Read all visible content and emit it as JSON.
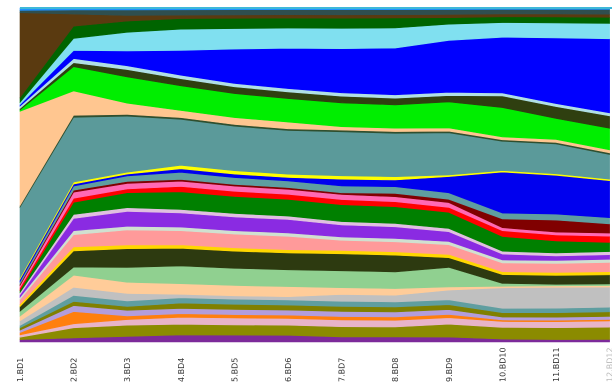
{
  "chart_data": {
    "type": "area",
    "stacking": "percent",
    "grid": false,
    "legend": "none",
    "categories": [
      "1.BD1",
      "2.BD2",
      "3.BD3",
      "4.BD4",
      "5.BD5",
      "6.BD6",
      "7.BD7",
      "8.BD8",
      "9.BD9",
      "10.BD10",
      "11.BD11",
      "12.BD12"
    ],
    "ylim": [
      0,
      100
    ],
    "series": [
      {
        "color": "#7d2a9a",
        "values": [
          0.5,
          1.0,
          1.5,
          2.0,
          2.0,
          2.0,
          1.5,
          1.5,
          1.5,
          1.0,
          0.8,
          0.8
        ]
      },
      {
        "color": "#8b8b00",
        "values": [
          0.5,
          2.5,
          3.0,
          3.0,
          3.0,
          3.0,
          3.0,
          3.0,
          4.0,
          4.0,
          4.0,
          4.0
        ]
      },
      {
        "color": "#e8b4c8",
        "values": [
          0.5,
          1.0,
          1.5,
          2.0,
          2.0,
          2.0,
          2.0,
          2.0,
          2.0,
          2.0,
          2.0,
          2.0
        ]
      },
      {
        "color": "#ff7f0e",
        "values": [
          0.5,
          3.0,
          1.0,
          1.0,
          1.0,
          1.0,
          1.0,
          1.0,
          1.0,
          0.5,
          0.5,
          0.5
        ]
      },
      {
        "color": "#b39ddb",
        "values": [
          0.5,
          1.5,
          1.5,
          1.5,
          1.5,
          1.5,
          1.5,
          1.5,
          1.5,
          1.0,
          1.0,
          1.0
        ]
      },
      {
        "color": "#808000",
        "values": [
          0.5,
          1.0,
          1.0,
          1.5,
          1.5,
          1.5,
          1.5,
          1.5,
          1.5,
          1.5,
          1.5,
          1.5
        ]
      },
      {
        "color": "#5f9ea0",
        "values": [
          0.5,
          1.5,
          1.5,
          1.5,
          1.5,
          1.5,
          1.5,
          1.5,
          1.5,
          1.5,
          1.5,
          1.5
        ]
      },
      {
        "color": "#c0c0c0",
        "values": [
          1.0,
          2.0,
          2.0,
          1.0,
          1.0,
          1.0,
          2.0,
          2.0,
          3.0,
          7.0,
          7.0,
          6.5
        ]
      },
      {
        "color": "#ffcc99",
        "values": [
          1.0,
          3.0,
          3.0,
          3.0,
          3.0,
          3.0,
          2.0,
          2.0,
          1.0,
          0.5,
          0.5,
          0.5
        ]
      },
      {
        "color": "#90d090",
        "values": [
          1.0,
          2.0,
          4.0,
          5.0,
          5.0,
          5.0,
          5.0,
          5.0,
          6.0,
          1.0,
          0.5,
          0.5
        ]
      },
      {
        "color": "#2d3a10",
        "values": [
          1.0,
          4.0,
          5.0,
          5.0,
          5.0,
          5.0,
          5.0,
          5.0,
          3.0,
          3.0,
          3.0,
          3.0
        ]
      },
      {
        "color": "#ffd700",
        "values": [
          0.5,
          1.0,
          1.0,
          1.0,
          1.0,
          1.0,
          1.0,
          1.0,
          1.0,
          1.0,
          1.0,
          1.0
        ]
      },
      {
        "color": "#ff9a9a",
        "values": [
          1.0,
          3.0,
          4.0,
          4.0,
          4.0,
          4.0,
          3.0,
          3.0,
          3.0,
          3.0,
          3.0,
          3.0
        ]
      },
      {
        "color": "#d0e0d0",
        "values": [
          0.5,
          1.0,
          1.0,
          1.0,
          1.0,
          1.0,
          1.0,
          1.0,
          1.0,
          1.0,
          1.0,
          1.0
        ]
      },
      {
        "color": "#8a2be2",
        "values": [
          0.5,
          3.0,
          4.0,
          4.0,
          4.0,
          4.0,
          3.5,
          3.5,
          3.0,
          2.0,
          1.5,
          1.5
        ]
      },
      {
        "color": "#e0c0e0",
        "values": [
          0.5,
          1.0,
          1.0,
          1.0,
          1.0,
          1.0,
          1.0,
          1.0,
          1.0,
          1.0,
          1.0,
          1.0
        ]
      },
      {
        "color": "#008000",
        "values": [
          0.5,
          3.0,
          4.0,
          5.0,
          5.0,
          5.0,
          5.0,
          5.0,
          5.0,
          5.0,
          4.0,
          3.0
        ]
      },
      {
        "color": "#ff0000",
        "values": [
          0.5,
          1.0,
          1.0,
          1.5,
          1.5,
          1.5,
          1.5,
          1.5,
          1.5,
          2.0,
          2.0,
          2.0
        ]
      },
      {
        "color": "#ff69b4",
        "values": [
          0.5,
          1.5,
          1.5,
          1.5,
          1.5,
          1.5,
          1.5,
          1.5,
          1.5,
          1.0,
          1.0,
          1.0
        ]
      },
      {
        "color": "#800000",
        "values": [
          0.3,
          0.5,
          0.5,
          0.5,
          0.5,
          0.5,
          0.5,
          1.0,
          1.0,
          3.0,
          4.0,
          3.0
        ]
      },
      {
        "color": "#5f9ea0",
        "values": [
          0.5,
          1.0,
          1.5,
          2.0,
          2.0,
          2.0,
          2.0,
          2.0,
          2.0,
          2.0,
          2.0,
          2.0
        ]
      },
      {
        "color": "#0000ee",
        "values": [
          0.5,
          0.5,
          0.5,
          1.0,
          1.0,
          1.0,
          2.0,
          2.0,
          5.0,
          14.0,
          13.0,
          12.0
        ]
      },
      {
        "color": "#ffff00",
        "values": [
          0.3,
          0.5,
          0.5,
          1.0,
          1.0,
          1.0,
          1.0,
          1.0,
          0.5,
          0.5,
          0.5,
          0.5
        ]
      },
      {
        "color": "#5b9a9a",
        "values": [
          15.0,
          16.0,
          15.0,
          13.0,
          13.0,
          13.0,
          13.0,
          13.0,
          13.0,
          10.0,
          10.0,
          8.0
        ]
      },
      {
        "color": "#2f4f2f",
        "values": [
          0.3,
          0.5,
          0.5,
          0.5,
          0.5,
          0.5,
          0.5,
          0.5,
          0.5,
          0.5,
          0.5,
          0.5
        ]
      },
      {
        "color": "#ffc690",
        "values": [
          20.0,
          6.0,
          3.0,
          2.0,
          2.0,
          2.0,
          1.0,
          1.0,
          1.0,
          1.0,
          1.0,
          1.0
        ]
      },
      {
        "color": "#00ee00",
        "values": [
          0.3,
          6.0,
          7.0,
          7.0,
          7.0,
          7.0,
          7.0,
          7.0,
          8.0,
          10.0,
          7.0,
          7.0
        ]
      },
      {
        "color": "#2f3f10",
        "values": [
          0.3,
          1.0,
          2.0,
          2.0,
          2.0,
          2.0,
          2.0,
          2.0,
          2.0,
          4.0,
          4.0,
          4.0
        ]
      },
      {
        "color": "#b0e0e6",
        "values": [
          0.5,
          1.0,
          1.0,
          1.0,
          1.0,
          1.0,
          1.0,
          1.0,
          1.0,
          1.0,
          1.0,
          1.0
        ]
      },
      {
        "color": "#0000ff",
        "values": [
          0.3,
          2.0,
          4.0,
          7.0,
          10.0,
          12.0,
          13.0,
          14.0,
          16.0,
          19.0,
          22.0,
          24.0
        ]
      },
      {
        "color": "#80e0f0",
        "values": [
          0.5,
          3.0,
          5.0,
          6.0,
          6.0,
          6.0,
          6.0,
          6.0,
          5.0,
          5.0,
          5.0,
          5.0
        ]
      },
      {
        "color": "#006400",
        "values": [
          1.0,
          3.0,
          3.0,
          3.0,
          3.0,
          3.0,
          3.0,
          3.0,
          2.0,
          2.0,
          2.0,
          2.0
        ]
      },
      {
        "color": "#5a3a10",
        "values": [
          18.0,
          3.0,
          1.5,
          1.0,
          1.0,
          1.0,
          1.0,
          1.0,
          1.0,
          1.0,
          1.0,
          1.0
        ]
      },
      {
        "color": "#2f4f4f",
        "values": [
          0.5,
          1.0,
          1.5,
          1.5,
          1.5,
          1.5,
          1.5,
          1.5,
          1.5,
          1.5,
          1.5,
          1.5
        ]
      },
      {
        "color": "#1e90ff",
        "values": [
          0.5,
          0.5,
          0.5,
          0.5,
          0.5,
          0.5,
          0.5,
          0.5,
          0.5,
          0.5,
          0.5,
          0.5
        ]
      }
    ]
  }
}
